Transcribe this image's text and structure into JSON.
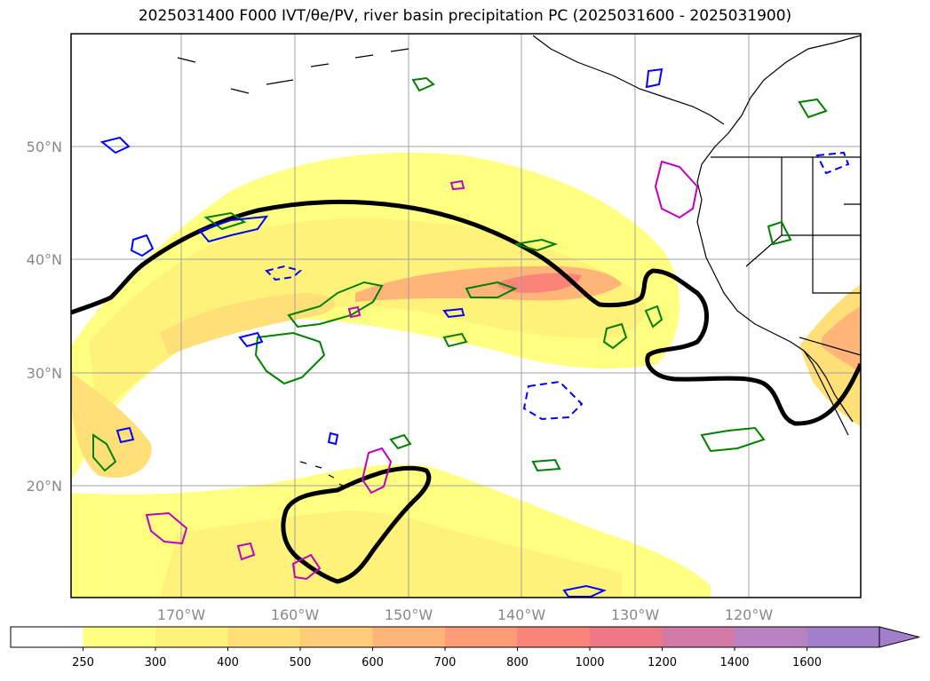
{
  "title": "2025031400 F000 IVT/θe/PV, river basin precipitation PC (2025031600 - 2025031900)",
  "map": {
    "lat_labels": [
      "50°N",
      "40°N",
      "30°N",
      "20°N"
    ],
    "lon_labels": [
      "170°W",
      "160°W",
      "150°W",
      "140°W",
      "130°W",
      "120°W"
    ],
    "colors": {
      "frame": "#000000",
      "grid": "#a0a0a0",
      "coast": "#000000",
      "theta_e": "#000000",
      "pv_positive": "#008000",
      "pv_negative": "#0000ff",
      "basin": "#c000c0"
    }
  },
  "colorbar": {
    "levels": [
      "250",
      "300",
      "400",
      "500",
      "600",
      "700",
      "800",
      "1000",
      "1200",
      "1400",
      "1600"
    ],
    "colors": [
      "#ffffff",
      "#ffff80",
      "#fff27a",
      "#ffe078",
      "#ffcd78",
      "#ffb478",
      "#ff9c78",
      "#fa8478",
      "#ee7885",
      "#d07aa5",
      "#b882c0",
      "#a37fcb"
    ]
  }
}
